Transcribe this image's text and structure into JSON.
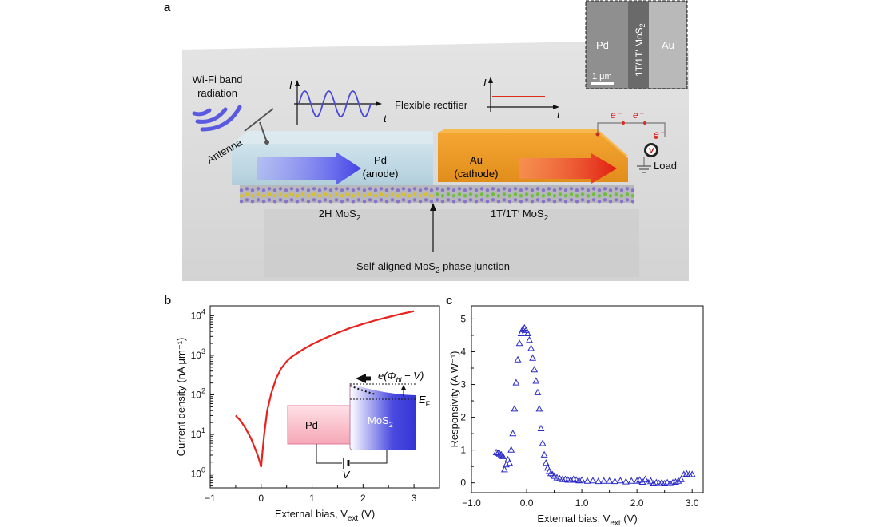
{
  "panels": {
    "a": "a",
    "b": "b",
    "c": "c"
  },
  "schematic": {
    "wifi_line1": "Wi-Fi band",
    "wifi_line2": "radiation",
    "antenna": "Antenna",
    "flexible_rectifier": "Flexible rectifier",
    "i_axis": "I",
    "t_axis": "t",
    "pd_label": "Pd",
    "pd_role": "(anode)",
    "au_label": "Au",
    "au_role": "(cathode)",
    "left_phase": "2H MoS",
    "left_phase_sub": "2",
    "right_phase": "1T/1T′ MoS",
    "right_phase_sub": "2",
    "junction_pre": "Self-aligned MoS",
    "junction_sub": "2",
    "junction_post": " phase junction",
    "electron": "e⁻",
    "load": "Load",
    "volt": "V",
    "inset_pd": "Pd",
    "inset_mid": "1T/1T' MoS",
    "inset_mid_sub": "2",
    "inset_au": "Au",
    "scale_bar": "1 μm",
    "colors": {
      "pd": "#c9dfe9",
      "au": "#f0a030",
      "arrow_blue": "#4f4fe6",
      "arrow_red": "#e02a1c"
    }
  },
  "chart_data": [
    {
      "id": "b",
      "type": "line",
      "xlabel": "External bias, V",
      "xlabel_sub": "ext",
      "xlabel_unit": " (V)",
      "ylabel": "Current density (nA μm⁻¹)",
      "xlim": [
        -1,
        3.5
      ],
      "ylim_log10": [
        -0.35,
        4.25
      ],
      "yscale": "log",
      "xticks": [
        -1,
        0,
        1,
        2,
        3
      ],
      "xtick_labels": [
        "−1",
        "0",
        "1",
        "2",
        "3"
      ],
      "yticks_exp": [
        0,
        1,
        2,
        3,
        4
      ],
      "color": "#e8231e",
      "series": [
        {
          "x": [
            -0.5,
            -0.4,
            -0.3,
            -0.2,
            -0.12,
            -0.06,
            -0.02,
            0.0,
            0.02,
            0.06,
            0.12,
            0.2,
            0.3,
            0.4,
            0.5,
            0.6,
            0.8,
            1.0,
            1.25,
            1.5,
            1.75,
            2.0,
            2.25,
            2.5,
            2.75,
            3.0
          ],
          "y": [
            30,
            22,
            14,
            8,
            4.5,
            2.8,
            1.9,
            1.5,
            3,
            10,
            40,
            110,
            270,
            480,
            700,
            920,
            1350,
            1900,
            2700,
            3700,
            4900,
            6200,
            7700,
            9300,
            11100,
            13000
          ]
        }
      ],
      "inset": {
        "pd": "Pd",
        "mos2": "MoS",
        "mos2_sub": "2",
        "barrier": "e(Φ",
        "barrier_sub": "bi",
        "barrier_post": " − V)",
        "ef": "E",
        "ef_sub": "F",
        "bias": "V"
      }
    },
    {
      "id": "c",
      "type": "scatter",
      "xlabel": "External bias, V",
      "xlabel_sub": "ext",
      "xlabel_unit": " (V)",
      "ylabel": "Responsivity (A W⁻¹)",
      "xlim": [
        -1.0,
        3.2
      ],
      "ylim": [
        -0.3,
        5.4
      ],
      "xticks": [
        -1.0,
        0.0,
        1.0,
        2.0,
        3.0
      ],
      "xtick_labels": [
        "−1.0",
        "0.0",
        "1.0",
        "2.0",
        "3.0"
      ],
      "yticks": [
        0,
        1,
        2,
        3,
        4,
        5
      ],
      "marker": "open-triangle",
      "color": "#2b2bc8",
      "series": [
        {
          "x": [
            -0.55,
            -0.52,
            -0.49,
            -0.46,
            -0.43,
            -0.4,
            -0.37,
            -0.34,
            -0.31,
            -0.28,
            -0.25,
            -0.22,
            -0.19,
            -0.16,
            -0.13,
            -0.1,
            -0.07,
            -0.04,
            -0.01,
            0.02,
            0.05,
            0.08,
            0.11,
            0.14,
            0.17,
            0.2,
            0.23,
            0.26,
            0.29,
            0.32,
            0.35,
            0.38,
            0.41,
            0.44,
            0.47,
            0.5,
            0.55,
            0.6,
            0.65,
            0.7,
            0.75,
            0.8,
            0.85,
            0.9,
            0.95,
            1.0,
            1.1,
            1.2,
            1.3,
            1.4,
            1.5,
            1.6,
            1.7,
            1.8,
            1.9,
            2.0,
            2.05,
            2.1,
            2.15,
            2.2,
            2.25,
            2.3,
            2.35,
            2.4,
            2.45,
            2.5,
            2.55,
            2.6,
            2.65,
            2.7,
            2.75,
            2.8,
            2.85,
            2.9,
            2.95,
            3.0
          ],
          "y": [
            0.92,
            0.9,
            0.88,
            0.85,
            0.8,
            0.4,
            0.55,
            0.7,
            0.6,
            1.0,
            1.5,
            2.25,
            3.05,
            3.75,
            4.25,
            4.55,
            4.68,
            4.72,
            4.65,
            4.55,
            4.35,
            4.1,
            3.8,
            3.45,
            3.1,
            2.75,
            2.25,
            1.65,
            1.2,
            0.85,
            0.6,
            0.45,
            0.35,
            0.28,
            0.24,
            0.2,
            0.15,
            0.12,
            0.1,
            0.1,
            0.08,
            0.08,
            0.1,
            0.08,
            0.06,
            0.08,
            0.05,
            0.06,
            0.04,
            0.05,
            0.05,
            0.04,
            0.06,
            0.03,
            0.05,
            0.05,
            0.08,
            0.02,
            0.1,
            0.0,
            0.05,
            -0.03,
            0.0,
            -0.02,
            0.0,
            -0.03,
            0.0,
            -0.02,
            0.0,
            0.02,
            0.05,
            0.1,
            0.25,
            0.27,
            0.25,
            0.25
          ]
        }
      ]
    }
  ]
}
